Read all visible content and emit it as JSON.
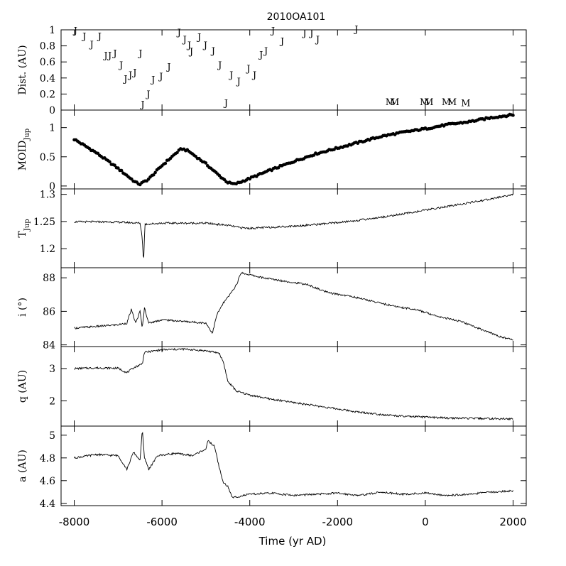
{
  "chart_data": {
    "type": "line",
    "title": "2010OA101",
    "xlabel": "Time (yr AD)",
    "xlim": [
      -8300,
      2300
    ],
    "xticks": [
      -8000,
      -6000,
      -4000,
      -2000,
      0,
      2000
    ],
    "xtick_labels": [
      "-8000",
      "-6000",
      "-4000",
      "-2000",
      "0",
      "2000"
    ],
    "panels": [
      {
        "id": "dist",
        "ylabel": "Dist. (AU)",
        "ylim": [
          0,
          1
        ],
        "yticks": [
          0,
          0.2,
          0.4,
          0.6,
          0.8,
          1
        ],
        "ytick_labels": [
          "0",
          "0.2",
          "0.4",
          "0.6",
          "0.8",
          "1"
        ],
        "series": [
          {
            "marker": "J",
            "points": [
              [
                -7970,
                0.95
              ],
              [
                -7770,
                0.88
              ],
              [
                -7600,
                0.78
              ],
              [
                -7420,
                0.88
              ],
              [
                -7280,
                0.64
              ],
              [
                -7190,
                0.64
              ],
              [
                -7070,
                0.67
              ],
              [
                -6930,
                0.52
              ],
              [
                -6830,
                0.35
              ],
              [
                -6720,
                0.4
              ],
              [
                -6620,
                0.43
              ],
              [
                -6490,
                0.67
              ],
              [
                -6440,
                0.03
              ],
              [
                -6310,
                0.16
              ],
              [
                -6200,
                0.34
              ],
              [
                -6020,
                0.38
              ],
              [
                -5840,
                0.5
              ],
              [
                -5610,
                0.93
              ],
              [
                -5480,
                0.84
              ],
              [
                -5380,
                0.77
              ],
              [
                -5330,
                0.69
              ],
              [
                -5150,
                0.87
              ],
              [
                -5010,
                0.77
              ],
              [
                -4830,
                0.7
              ],
              [
                -4680,
                0.52
              ],
              [
                -4420,
                0.4
              ],
              [
                -4250,
                0.32
              ],
              [
                -4030,
                0.48
              ],
              [
                -3890,
                0.4
              ],
              [
                -3740,
                0.65
              ],
              [
                -3630,
                0.7
              ],
              [
                -3470,
                0.95
              ],
              [
                -3260,
                0.82
              ],
              [
                -2750,
                0.92
              ],
              [
                -2590,
                0.92
              ],
              [
                -2450,
                0.84
              ],
              [
                -4540,
                0.05
              ],
              [
                -1570,
                0.97
              ]
            ]
          },
          {
            "marker": "M",
            "points": [
              [
                -800,
                0.06
              ],
              [
                -700,
                0.06
              ],
              [
                -20,
                0.06
              ],
              [
                80,
                0.06
              ],
              [
                480,
                0.06
              ],
              [
                610,
                0.06
              ],
              [
                920,
                0.05
              ]
            ]
          }
        ]
      },
      {
        "id": "moid",
        "ylabel": "MOID",
        "ylabel_sub": "Jup",
        "ylim": [
          -0.05,
          1.3
        ],
        "yticks": [
          0,
          0.5,
          1
        ],
        "ytick_labels": [
          "0",
          "0.5",
          "1"
        ],
        "style": "dots",
        "series": [
          {
            "points": [
              [
                -8000,
                0.8
              ],
              [
                -7500,
                0.57
              ],
              [
                -7000,
                0.3
              ],
              [
                -6600,
                0.06
              ],
              [
                -6500,
                0.03
              ],
              [
                -6300,
                0.12
              ],
              [
                -6000,
                0.35
              ],
              [
                -5700,
                0.55
              ],
              [
                -5550,
                0.64
              ],
              [
                -5400,
                0.6
              ],
              [
                -5000,
                0.38
              ],
              [
                -4700,
                0.18
              ],
              [
                -4500,
                0.06
              ],
              [
                -4350,
                0.03
              ],
              [
                -4200,
                0.07
              ],
              [
                -3500,
                0.28
              ],
              [
                -3000,
                0.42
              ],
              [
                -2500,
                0.55
              ],
              [
                -2000,
                0.65
              ],
              [
                -1500,
                0.75
              ],
              [
                -1000,
                0.85
              ],
              [
                -500,
                0.92
              ],
              [
                0,
                0.98
              ],
              [
                500,
                1.05
              ],
              [
                1000,
                1.1
              ],
              [
                1500,
                1.17
              ],
              [
                2000,
                1.22
              ]
            ]
          }
        ]
      },
      {
        "id": "tjup",
        "ylabel": "T",
        "ylabel_sub": "Jup",
        "ylim": [
          1.165,
          1.31
        ],
        "yticks": [
          1.2,
          1.25,
          1.3
        ],
        "ytick_labels": [
          "1.2",
          "1.25",
          "1.3"
        ],
        "series": [
          {
            "points": [
              [
                -8000,
                1.2495
              ],
              [
                -7500,
                1.2495
              ],
              [
                -7000,
                1.249
              ],
              [
                -6500,
                1.247
              ],
              [
                -6450,
                1.22
              ],
              [
                -6420,
                1.172
              ],
              [
                -6390,
                1.245
              ],
              [
                -6000,
                1.247
              ],
              [
                -5500,
                1.247
              ],
              [
                -5000,
                1.247
              ],
              [
                -4500,
                1.243
              ],
              [
                -4200,
                1.2385
              ],
              [
                -4000,
                1.2375
              ],
              [
                -3500,
                1.2395
              ],
              [
                -3000,
                1.2415
              ],
              [
                -2500,
                1.2445
              ],
              [
                -2000,
                1.248
              ],
              [
                -1500,
                1.2525
              ],
              [
                -1000,
                1.258
              ],
              [
                -500,
                1.264
              ],
              [
                0,
                1.271
              ],
              [
                500,
                1.2775
              ],
              [
                1000,
                1.2845
              ],
              [
                1500,
                1.2915
              ],
              [
                2000,
                1.3
              ]
            ]
          }
        ]
      },
      {
        "id": "inc",
        "ylabel": "i (°)",
        "ylim": [
          83.9,
          88.6
        ],
        "yticks": [
          84,
          86,
          88
        ],
        "ytick_labels": [
          "84",
          "86",
          "88"
        ],
        "series": [
          {
            "points": [
              [
                -8000,
                85.0
              ],
              [
                -7500,
                85.1
              ],
              [
                -7000,
                85.2
              ],
              [
                -6800,
                85.3
              ],
              [
                -6700,
                86.1
              ],
              [
                -6600,
                85.3
              ],
              [
                -6500,
                86.0
              ],
              [
                -6450,
                85.0
              ],
              [
                -6400,
                86.2
              ],
              [
                -6300,
                85.3
              ],
              [
                -6000,
                85.5
              ],
              [
                -5500,
                85.4
              ],
              [
                -5000,
                85.3
              ],
              [
                -4850,
                84.7
              ],
              [
                -4750,
                85.8
              ],
              [
                -4600,
                86.5
              ],
              [
                -4450,
                87.0
              ],
              [
                -4300,
                87.6
              ],
              [
                -4200,
                88.3
              ],
              [
                -3700,
                88.0
              ],
              [
                -3200,
                87.8
              ],
              [
                -2700,
                87.6
              ],
              [
                -2200,
                87.1
              ],
              [
                -1700,
                86.9
              ],
              [
                -1200,
                86.6
              ],
              [
                -700,
                86.3
              ],
              [
                -200,
                86.1
              ],
              [
                300,
                85.7
              ],
              [
                800,
                85.4
              ],
              [
                1300,
                84.9
              ],
              [
                1700,
                84.5
              ],
              [
                2000,
                84.3
              ]
            ]
          }
        ]
      },
      {
        "id": "q",
        "ylabel": "q (AU)",
        "ylim": [
          1.22,
          3.68
        ],
        "yticks": [
          2,
          3
        ],
        "ytick_labels": [
          "2",
          "3"
        ],
        "series": [
          {
            "points": [
              [
                -8000,
                3.0
              ],
              [
                -7500,
                3.02
              ],
              [
                -7000,
                3.01
              ],
              [
                -6800,
                2.87
              ],
              [
                -6650,
                3.02
              ],
              [
                -6450,
                3.15
              ],
              [
                -6400,
                3.5
              ],
              [
                -6000,
                3.58
              ],
              [
                -5500,
                3.6
              ],
              [
                -5000,
                3.55
              ],
              [
                -4700,
                3.48
              ],
              [
                -4600,
                3.2
              ],
              [
                -4500,
                2.6
              ],
              [
                -4300,
                2.3
              ],
              [
                -4000,
                2.18
              ],
              [
                -3500,
                2.05
              ],
              [
                -3000,
                1.95
              ],
              [
                -2500,
                1.85
              ],
              [
                -2000,
                1.75
              ],
              [
                -1500,
                1.65
              ],
              [
                -1000,
                1.58
              ],
              [
                -500,
                1.52
              ],
              [
                0,
                1.5
              ],
              [
                500,
                1.47
              ],
              [
                1000,
                1.46
              ],
              [
                1500,
                1.45
              ],
              [
                2000,
                1.44
              ]
            ]
          }
        ]
      },
      {
        "id": "a",
        "ylabel": "a (AU)",
        "ylim": [
          4.38,
          5.08
        ],
        "yticks": [
          4.4,
          4.6,
          4.8,
          5
        ],
        "ytick_labels": [
          "4.4",
          "4.6",
          "4.8",
          "5"
        ],
        "series": [
          {
            "points": [
              [
                -8000,
                4.8
              ],
              [
                -7500,
                4.83
              ],
              [
                -7000,
                4.82
              ],
              [
                -6800,
                4.7
              ],
              [
                -6650,
                4.85
              ],
              [
                -6500,
                4.78
              ],
              [
                -6450,
                5.05
              ],
              [
                -6400,
                4.8
              ],
              [
                -6300,
                4.7
              ],
              [
                -6100,
                4.82
              ],
              [
                -5700,
                4.84
              ],
              [
                -5300,
                4.82
              ],
              [
                -5000,
                4.88
              ],
              [
                -4950,
                4.95
              ],
              [
                -4800,
                4.9
              ],
              [
                -4700,
                4.72
              ],
              [
                -4600,
                4.58
              ],
              [
                -4500,
                4.55
              ],
              [
                -4400,
                4.45
              ],
              [
                -4000,
                4.48
              ],
              [
                -3500,
                4.49
              ],
              [
                -3000,
                4.47
              ],
              [
                -2500,
                4.48
              ],
              [
                -2000,
                4.49
              ],
              [
                -1500,
                4.47
              ],
              [
                -1000,
                4.5
              ],
              [
                -500,
                4.48
              ],
              [
                0,
                4.49
              ],
              [
                500,
                4.47
              ],
              [
                1000,
                4.48
              ],
              [
                1500,
                4.5
              ],
              [
                2000,
                4.51
              ]
            ]
          }
        ]
      }
    ]
  }
}
